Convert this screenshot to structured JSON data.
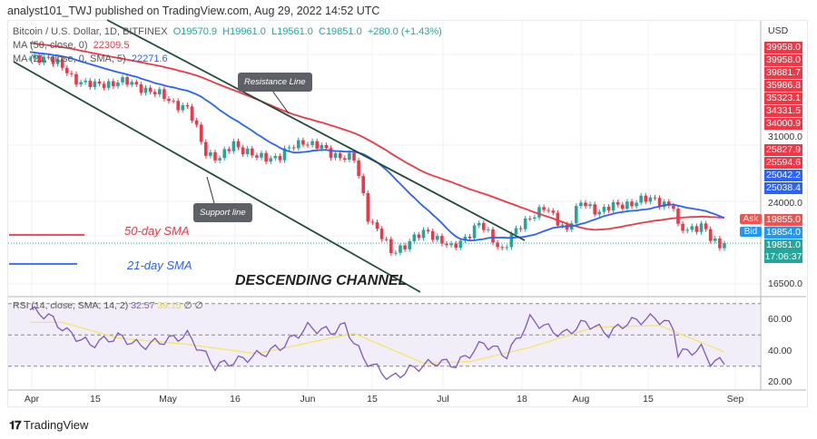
{
  "header": {
    "published": "analyst101_TWJ published on TradingView.com, Aug 29, 2022 14:52 UTC"
  },
  "legend": {
    "symbol": "Bitcoin / U.S. Dollar, 1D, BITFINEX",
    "open": "O19570.9",
    "high": "H19961.0",
    "low": "L19561.0",
    "close": "C19851.0",
    "change": "+280.0 (+1.43%)",
    "ma50": "MA (50, close, 0)",
    "ma50_value": "22309.5",
    "ma21": "MA (21, close, 0, SMA, 5)",
    "ma21_value": "22271.6"
  },
  "price_axis": {
    "currency": "USD",
    "ticks": [
      "31000.0",
      "24000.0",
      "16500.0"
    ],
    "red_tags": [
      "39958.0",
      "39958.0",
      "39881.7",
      "35986.8",
      "35323.1",
      "34331.5",
      "34000.9",
      "25827.9",
      "25594.6"
    ],
    "blue_tags": [
      "25042.2",
      "25038.4"
    ],
    "ask_label": "Ask",
    "ask": "19855.0",
    "bid_label": "Bid",
    "bid": "19854.0",
    "last": "19851.0",
    "countdown": "17:06:37"
  },
  "rsi": {
    "label": "RSI (14, close, SMA, 14, 2)",
    "value": "32.57",
    "sma_value": "39.15",
    "na1": "∅",
    "na2": "∅",
    "ticks": [
      "60.00",
      "40.00",
      "20.00"
    ]
  },
  "x_axis": [
    "Apr",
    "15",
    "May",
    "16",
    "Jun",
    "15",
    "Jul",
    "18",
    "Aug",
    "15",
    "Sep"
  ],
  "annotations": {
    "resistance": "Resistance Line",
    "support": "Support line",
    "sma50": "50-day SMA",
    "sma21": "21-day SMA",
    "channel": "DESCENDING CHANNEL"
  },
  "footer": {
    "brand": "TradingView"
  },
  "colors": {
    "up": "#26a69a",
    "down": "#f23645",
    "ma50": "#f23645",
    "ma21": "#2962ff",
    "rsi": "#7e57c2",
    "rsi_sma": "#f5e663",
    "channel": "#1f4d3a"
  },
  "chart_data": {
    "type": "candlestick",
    "scale": "log",
    "currency": "USD",
    "closes": [
      [
        "2022-04-01",
        45500
      ],
      [
        "2022-04-05",
        46500
      ],
      [
        "2022-04-10",
        42200
      ],
      [
        "2022-04-15",
        40500
      ],
      [
        "2022-04-20",
        41500
      ],
      [
        "2022-04-25",
        40400
      ],
      [
        "2022-04-30",
        38500
      ],
      [
        "2022-05-05",
        36500
      ],
      [
        "2022-05-09",
        30100
      ],
      [
        "2022-05-12",
        29000
      ],
      [
        "2022-05-15",
        31300
      ],
      [
        "2022-05-20",
        29200
      ],
      [
        "2022-05-25",
        29500
      ],
      [
        "2022-05-30",
        31700
      ],
      [
        "2022-06-05",
        29900
      ],
      [
        "2022-06-10",
        29000
      ],
      [
        "2022-06-13",
        22500
      ],
      [
        "2022-06-18",
        19000
      ],
      [
        "2022-06-22",
        20000
      ],
      [
        "2022-06-26",
        21000
      ],
      [
        "2022-07-01",
        19300
      ],
      [
        "2022-07-07",
        21600
      ],
      [
        "2022-07-12",
        19300
      ],
      [
        "2022-07-18",
        22500
      ],
      [
        "2022-07-21",
        23200
      ],
      [
        "2022-07-26",
        21200
      ],
      [
        "2022-07-29",
        23800
      ],
      [
        "2022-08-02",
        23000
      ],
      [
        "2022-08-08",
        23800
      ],
      [
        "2022-08-14",
        24300
      ],
      [
        "2022-08-18",
        23300
      ],
      [
        "2022-08-19",
        21100
      ],
      [
        "2022-08-24",
        21500
      ],
      [
        "2022-08-26",
        20200
      ],
      [
        "2022-08-28",
        19600
      ],
      [
        "2022-08-29",
        19851
      ]
    ],
    "rsi": [
      [
        "2022-04-01",
        66
      ],
      [
        "2022-04-05",
        62
      ],
      [
        "2022-04-09",
        52
      ],
      [
        "2022-04-14",
        44
      ],
      [
        "2022-04-20",
        49
      ],
      [
        "2022-04-25",
        43
      ],
      [
        "2022-05-01",
        47
      ],
      [
        "2022-05-05",
        50
      ],
      [
        "2022-05-11",
        30
      ],
      [
        "2022-05-15",
        33
      ],
      [
        "2022-05-20",
        37
      ],
      [
        "2022-05-25",
        42
      ],
      [
        "2022-05-31",
        55
      ],
      [
        "2022-06-05",
        52
      ],
      [
        "2022-06-08",
        56
      ],
      [
        "2022-06-12",
        35
      ],
      [
        "2022-06-18",
        22
      ],
      [
        "2022-06-22",
        28
      ],
      [
        "2022-06-28",
        33
      ],
      [
        "2022-07-02",
        31
      ],
      [
        "2022-07-08",
        45
      ],
      [
        "2022-07-13",
        37
      ],
      [
        "2022-07-18",
        60
      ],
      [
        "2022-07-25",
        50
      ],
      [
        "2022-07-30",
        58
      ],
      [
        "2022-08-04",
        51
      ],
      [
        "2022-08-08",
        58
      ],
      [
        "2022-08-14",
        61
      ],
      [
        "2022-08-18",
        55
      ],
      [
        "2022-08-19",
        38
      ],
      [
        "2022-08-24",
        41
      ],
      [
        "2022-08-26",
        33
      ],
      [
        "2022-08-29",
        32.57
      ]
    ],
    "rsi_sma": [
      [
        "2022-04-01",
        58
      ],
      [
        "2022-04-08",
        58
      ],
      [
        "2022-04-20",
        48
      ],
      [
        "2022-05-05",
        44
      ],
      [
        "2022-05-20",
        38
      ],
      [
        "2022-06-05",
        48
      ],
      [
        "2022-06-10",
        51
      ],
      [
        "2022-06-25",
        32
      ],
      [
        "2022-07-05",
        33
      ],
      [
        "2022-07-18",
        42
      ],
      [
        "2022-08-01",
        55
      ],
      [
        "2022-08-15",
        56
      ],
      [
        "2022-08-29",
        39.15
      ]
    ]
  }
}
